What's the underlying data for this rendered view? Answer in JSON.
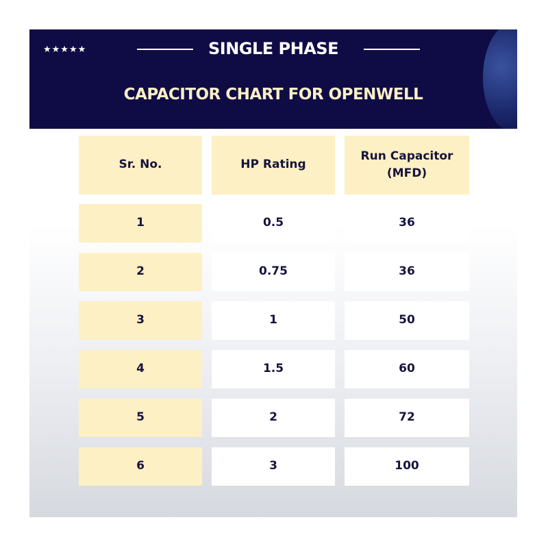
{
  "header": {
    "stars": "★★★★★",
    "title": "SINGLE PHASE",
    "subtitle": "CAPACITOR CHART FOR OPENWELL"
  },
  "colors": {
    "navy": "#0f0c45",
    "cream": "#fdf0c4",
    "title_cream": "#fbefc6"
  },
  "chart_data": {
    "type": "table",
    "title": "CAPACITOR CHART FOR OPENWELL",
    "columns": [
      "Sr. No.",
      "HP Rating",
      "Run Capacitor (MFD)"
    ],
    "rows": [
      [
        "1",
        "0.5",
        "36"
      ],
      [
        "2",
        "0.75",
        "36"
      ],
      [
        "3",
        "1",
        "50"
      ],
      [
        "4",
        "1.5",
        "60"
      ],
      [
        "5",
        "2",
        "72"
      ],
      [
        "6",
        "3",
        "100"
      ]
    ]
  }
}
